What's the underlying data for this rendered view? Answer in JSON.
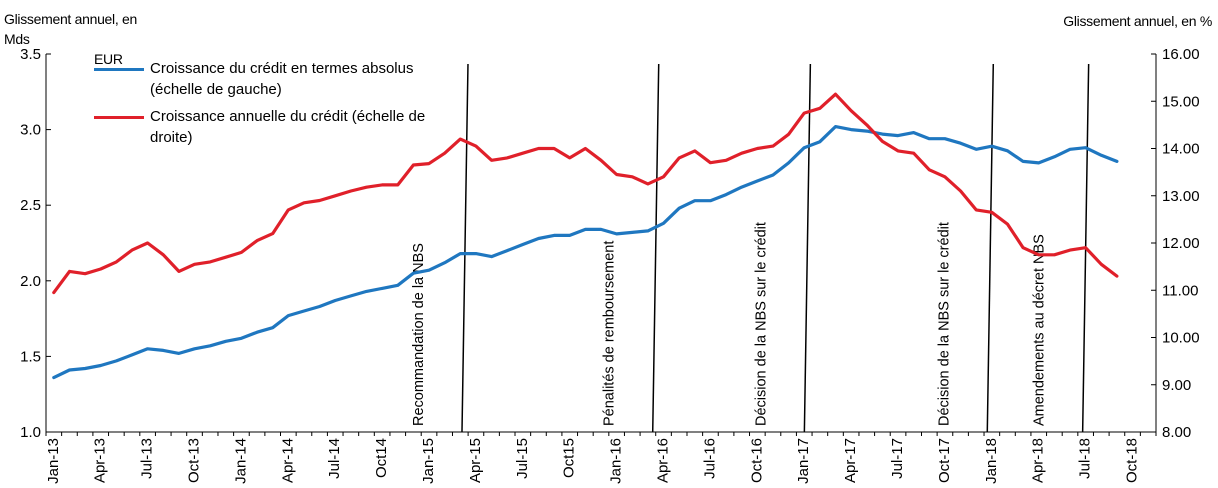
{
  "left_axis_title": [
    "Glissement annuel, en Mds",
    "EUR"
  ],
  "right_axis_title": "Glissement annuel, en %",
  "legend": [
    {
      "label": "Croissance du crédit en termes absolus (échelle de gauche)",
      "color": "#1f77c0"
    },
    {
      "label": "Croissance annuelle du crédit (échelle de droite)",
      "color": "#e0202a"
    }
  ],
  "chart_data": {
    "type": "line",
    "x": [
      "Jan-13",
      "Feb-13",
      "Mar-13",
      "Apr-13",
      "May-13",
      "Jun-13",
      "Jul-13",
      "Aug-13",
      "Sep-13",
      "Oct-13",
      "Nov-13",
      "Dec-13",
      "Jan-14",
      "Feb-14",
      "Mar-14",
      "Apr-14",
      "May-14",
      "Jun-14",
      "Jul-14",
      "Aug-14",
      "Sep-14",
      "Oct-14",
      "Nov-14",
      "Dec-14",
      "Jan-15",
      "Feb-15",
      "Mar-15",
      "Apr-15",
      "May-15",
      "Jun-15",
      "Jul-15",
      "Aug-15",
      "Sep-15",
      "Oct-15",
      "Nov-15",
      "Dec-15",
      "Jan-16",
      "Feb-16",
      "Mar-16",
      "Apr-16",
      "May-16",
      "Jun-16",
      "Jul-16",
      "Aug-16",
      "Sep-16",
      "Oct-16",
      "Nov-16",
      "Dec-16",
      "Jan-17",
      "Feb-17",
      "Mar-17",
      "Apr-17",
      "May-17",
      "Jun-17",
      "Jul-17",
      "Aug-17",
      "Sep-17",
      "Oct-17",
      "Nov-17",
      "Dec-17",
      "Jan-18",
      "Feb-18",
      "Mar-18",
      "Apr-18",
      "May-18",
      "Jun-18",
      "Jul-18",
      "Aug-18",
      "Sep-18"
    ],
    "x_tick_labels": [
      "Jan-13",
      "Apr-13",
      "Jul-13",
      "Oct-13",
      "Jan-14",
      "Apr-14",
      "Jul-14",
      "Oct14",
      "Jan-15",
      "Apr-15",
      "Jul-15",
      "Oct15",
      "Jan-16",
      "Apr-16",
      "Jul-16",
      "Oct-16",
      "Jan-17",
      "Apr-17",
      "Jul-17",
      "Oct-17",
      "Jan-18",
      "Apr-18",
      "Jul-18",
      "Oct-18"
    ],
    "y_left": {
      "ylim": [
        1.0,
        3.5
      ],
      "ticks": [
        "1.0",
        "1.5",
        "2.0",
        "2.5",
        "3.0",
        "3.5"
      ]
    },
    "y_right": {
      "ylim": [
        8.0,
        16.0
      ],
      "ticks": [
        "8.00",
        "9.00",
        "10.00",
        "11.00",
        "12.00",
        "13.00",
        "14.00",
        "15.00",
        "16.00"
      ]
    },
    "series": [
      {
        "name": "Croissance du crédit en termes absolus (échelle de gauche)",
        "axis": "left",
        "color": "#1f77c0",
        "values": [
          1.36,
          1.41,
          1.42,
          1.44,
          1.47,
          1.51,
          1.55,
          1.54,
          1.52,
          1.55,
          1.57,
          1.6,
          1.62,
          1.66,
          1.69,
          1.77,
          1.8,
          1.83,
          1.87,
          1.9,
          1.93,
          1.95,
          1.97,
          2.05,
          2.07,
          2.12,
          2.18,
          2.18,
          2.16,
          2.2,
          2.24,
          2.28,
          2.3,
          2.3,
          2.34,
          2.34,
          2.31,
          2.32,
          2.33,
          2.38,
          2.48,
          2.53,
          2.53,
          2.57,
          2.62,
          2.66,
          2.7,
          2.78,
          2.88,
          2.92,
          3.02,
          3.0,
          2.99,
          2.97,
          2.96,
          2.98,
          2.94,
          2.94,
          2.91,
          2.87,
          2.89,
          2.86,
          2.79,
          2.78,
          2.82,
          2.87,
          2.88,
          2.83,
          2.79
        ]
      },
      {
        "name": "Croissance annuelle du crédit (échelle de droite)",
        "axis": "right",
        "color": "#e0202a",
        "values": [
          10.95,
          11.4,
          11.35,
          11.45,
          11.6,
          11.85,
          12.0,
          11.75,
          11.4,
          11.55,
          11.6,
          11.7,
          11.8,
          12.05,
          12.2,
          12.7,
          12.85,
          12.9,
          13.0,
          13.1,
          13.18,
          13.23,
          13.23,
          13.65,
          13.68,
          13.9,
          14.2,
          14.05,
          13.75,
          13.8,
          13.9,
          14.0,
          14.0,
          13.8,
          14.0,
          13.75,
          13.45,
          13.4,
          13.25,
          13.4,
          13.8,
          13.95,
          13.7,
          13.75,
          13.9,
          14.0,
          14.05,
          14.3,
          14.75,
          14.85,
          15.15,
          14.8,
          14.5,
          14.15,
          13.95,
          13.9,
          13.55,
          13.4,
          13.1,
          12.7,
          12.65,
          12.4,
          11.9,
          11.75,
          11.75,
          11.85,
          11.9,
          11.55,
          11.3
        ]
      }
    ],
    "annotations": [
      {
        "label": "Recommandation de la NBS",
        "x_index": 26.3
      },
      {
        "label": "Pénalités de remboursement",
        "x_index": 38.5
      },
      {
        "label": "Décision de la NBS sur le crédit",
        "x_index": 48.2
      },
      {
        "label": "Décision de la NBS sur le crédit",
        "x_index": 59.9
      },
      {
        "label": "Amendements au décret NBS",
        "x_index": 66.0
      }
    ]
  }
}
